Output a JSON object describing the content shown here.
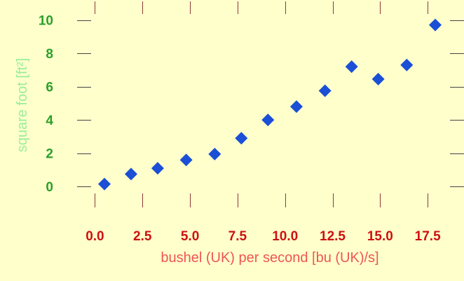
{
  "chart_data": {
    "type": "scatter",
    "xlabel": "bushel (UK) per second [bu (UK)/s]",
    "ylabel": "square foot [ft²]",
    "xlim": [
      -0.2,
      18.6
    ],
    "ylim": [
      -1.0,
      11.2
    ],
    "x_ticks": [
      "0.0",
      "2.5",
      "5.0",
      "7.5",
      "10.0",
      "12.5",
      "15.0",
      "17.5"
    ],
    "y_ticks": [
      "0",
      "2",
      "4",
      "6",
      "8",
      "10"
    ],
    "grid": false,
    "legend": "none",
    "series": [
      {
        "marker": "diamond",
        "color": "#1a4fd6",
        "points": [
          {
            "x": 0.5,
            "y": 0.15
          },
          {
            "x": 1.9,
            "y": 0.75
          },
          {
            "x": 3.3,
            "y": 1.1
          },
          {
            "x": 4.8,
            "y": 1.6
          },
          {
            "x": 6.3,
            "y": 1.95
          },
          {
            "x": 7.7,
            "y": 2.9
          },
          {
            "x": 9.1,
            "y": 4.0
          },
          {
            "x": 10.6,
            "y": 4.8
          },
          {
            "x": 12.1,
            "y": 5.75
          },
          {
            "x": 13.5,
            "y": 7.2
          },
          {
            "x": 14.9,
            "y": 6.45
          },
          {
            "x": 16.4,
            "y": 7.3
          },
          {
            "x": 17.9,
            "y": 9.7
          }
        ]
      }
    ]
  },
  "colors": {
    "background": "#ffffcc",
    "x_tick_text": "#cc1111",
    "y_tick_text": "#2aa02a",
    "x_axis_label": "#ee5555",
    "y_axis_label": "#99ee99",
    "tick_mark_x": "#8b3a3a",
    "tick_mark_y": "#444444",
    "marker": "#1a4fd6"
  }
}
